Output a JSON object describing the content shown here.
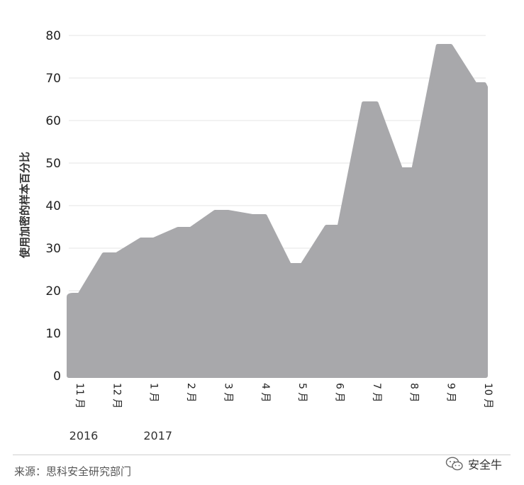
{
  "chart_data": {
    "type": "area",
    "categories": [
      "11 月",
      "12 月",
      "1 月",
      "2 月",
      "3 月",
      "4 月",
      "5 月",
      "6 月",
      "7 月",
      "8 月",
      "9 月",
      "10 月"
    ],
    "values": [
      19,
      28.5,
      32,
      34.5,
      38.5,
      37.5,
      26,
      35,
      64,
      48.5,
      77.5,
      68.5
    ],
    "year_labels": [
      {
        "label": "2016",
        "category_index": 0
      },
      {
        "label": "2017",
        "category_index": 2
      }
    ],
    "xlabel": "",
    "ylabel": "使用加密的样本百分比",
    "ylim": [
      0,
      80
    ],
    "yticks": [
      0,
      10,
      20,
      30,
      40,
      50,
      60,
      70,
      80
    ],
    "grid": true,
    "fill_color": "#a8a8ab"
  },
  "footer": {
    "source": "来源：思科安全研究部门",
    "watermark": "安全牛"
  }
}
